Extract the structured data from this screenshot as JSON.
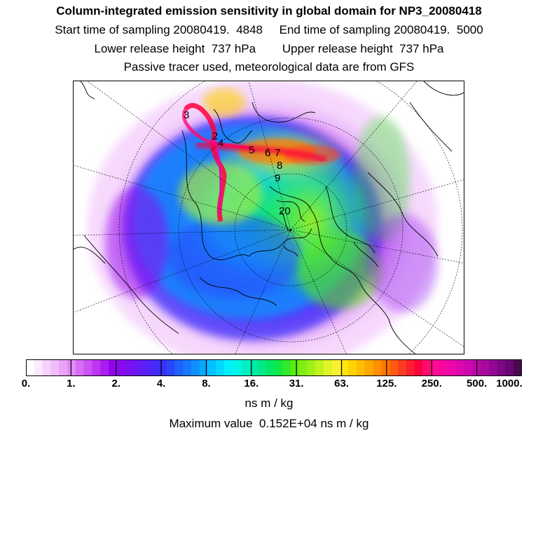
{
  "header": {
    "title": "Column-integrated emission sensitivity in global domain for NP3_20080418",
    "sampling_line": "Start time of sampling 20080419.  4848     End time of sampling 20080419.  5000",
    "release_line": "Lower release height  737 hPa        Upper release height  737 hPa",
    "tracer_line": "Passive tracer used, meteorological data are from GFS"
  },
  "map": {
    "projection": "north polar stereographic",
    "track_labels": [
      "3",
      "2",
      "4",
      "5",
      "6",
      "7",
      "8",
      "9",
      "20"
    ]
  },
  "legend": {
    "tick_labels": [
      "0.",
      "1.",
      "2.",
      "4.",
      "8.",
      "16.",
      "31.",
      "63.",
      "125.",
      "250.",
      "500.",
      "1000."
    ],
    "unit": "ns m / kg",
    "colors": [
      "#ffffff",
      "#fbeafd",
      "#f5d3fb",
      "#f0bbfa",
      "#e9a3f8",
      "#e18af7",
      "#d66ef5",
      "#cb52f3",
      "#bd36f1",
      "#ab1cef",
      "#9400ee",
      "#8a08f0",
      "#7a10f2",
      "#6a18f4",
      "#5a20f6",
      "#4a28f8",
      "#3a30fa",
      "#2a48fb",
      "#2060fc",
      "#1878fd",
      "#1090fd",
      "#08a8fe",
      "#00c0ff",
      "#00d8ff",
      "#00f0ff",
      "#00f5e6",
      "#00f0c8",
      "#00eaa8",
      "#00e888",
      "#00e868",
      "#10e848",
      "#30ea28",
      "#58ec10",
      "#80ee10",
      "#a0f018",
      "#c0f220",
      "#e0f428",
      "#f8f230",
      "#fde610",
      "#ffd200",
      "#ffbe00",
      "#ffa800",
      "#ff9000",
      "#ff7800",
      "#ff5a10",
      "#ff3c20",
      "#ff1e30",
      "#ff0040",
      "#ff0a70",
      "#ff0a90",
      "#f808a0",
      "#ec08a8",
      "#de08b0",
      "#ce08b0",
      "#bc08a8",
      "#a808a0",
      "#920894",
      "#7c0884",
      "#660870",
      "#4a0850"
    ]
  },
  "max_value_line": "Maximum value  0.152E+04 ns m / kg"
}
